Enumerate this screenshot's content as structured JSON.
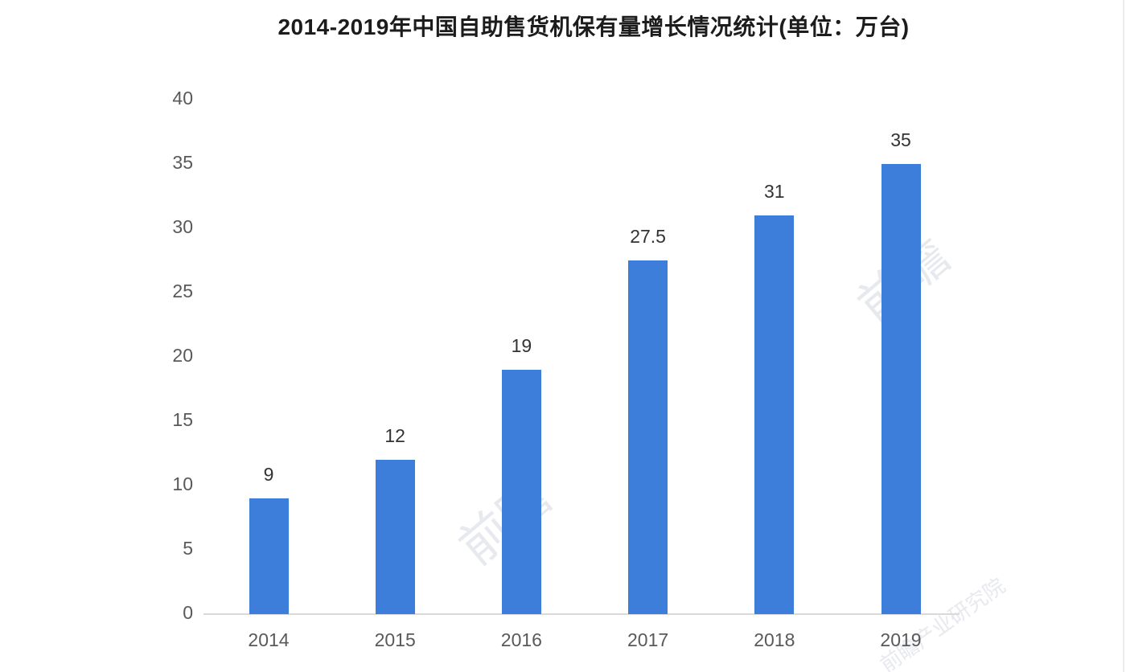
{
  "chart_data": {
    "type": "bar",
    "title": "2014-2019年中国自助售货机保有量增长情况统计(单位：万台)",
    "categories": [
      "2014",
      "2015",
      "2016",
      "2017",
      "2018",
      "2019"
    ],
    "values": [
      9,
      12,
      19,
      27.5,
      31,
      35
    ],
    "value_labels": [
      "9",
      "12",
      "19",
      "27.5",
      "31",
      "35"
    ],
    "xlabel": "",
    "ylabel": "",
    "ylim": [
      0,
      40
    ],
    "yticks": [
      0,
      5,
      10,
      15,
      20,
      25,
      30,
      35,
      40
    ],
    "grid": false,
    "legend_position": "none",
    "bar_color": "#3d7edb",
    "axis_tick_color": "#595959",
    "value_label_color": "#333333",
    "baseline_color": "#d9d9d9",
    "title_color": "#1c1c1c"
  },
  "watermark": {
    "mark": "前瞻",
    "full": "前瞻产业研究院"
  }
}
